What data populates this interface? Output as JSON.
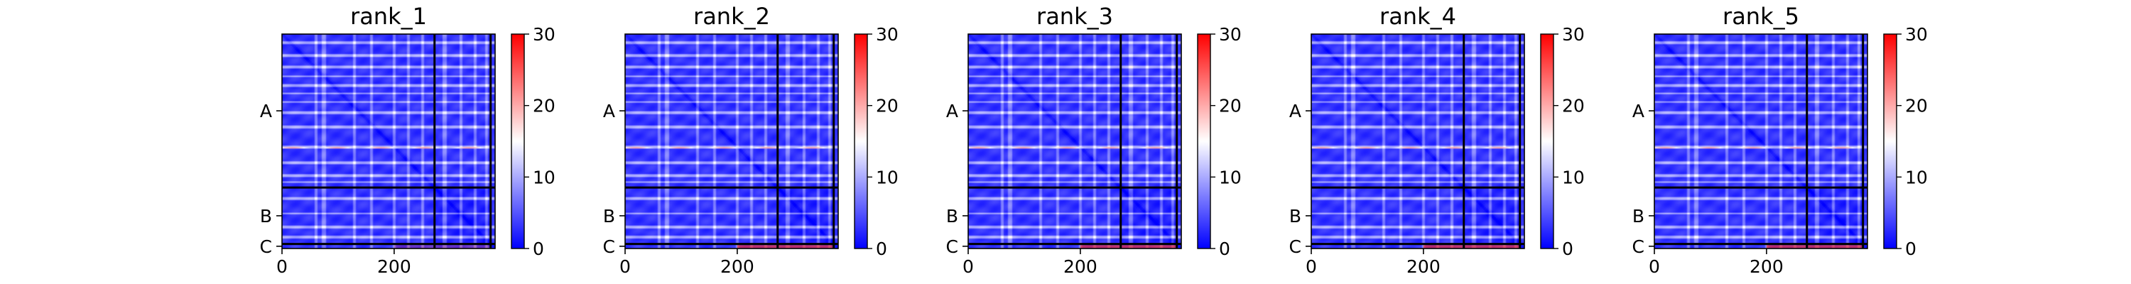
{
  "chart_data": {
    "type": "heatmap",
    "colormap": [
      "#0000ff",
      "#ffffff",
      "#ff0000"
    ],
    "colorbar": {
      "range": [
        0,
        30
      ],
      "ticks": [
        "0",
        "10",
        "20",
        "30"
      ]
    },
    "x_range": [
      0,
      380
    ],
    "x_ticks": [
      "0",
      "200"
    ],
    "chains": [
      {
        "label": "A",
        "start": 0,
        "end": 272
      },
      {
        "label": "B",
        "start": 272,
        "end": 372
      },
      {
        "label": "C",
        "start": 372,
        "end": 380
      }
    ],
    "panels": [
      {
        "title": "rank_1"
      },
      {
        "title": "rank_2"
      },
      {
        "title": "rank_3"
      },
      {
        "title": "rank_4"
      },
      {
        "title": "rank_5"
      }
    ]
  }
}
